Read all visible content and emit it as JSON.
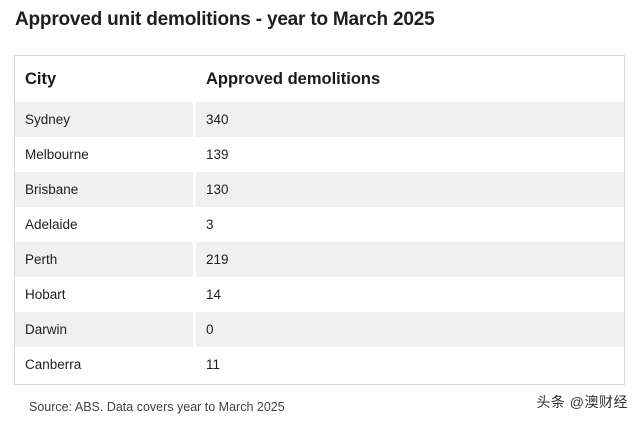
{
  "title": "Approved unit demolitions - year to March 2025",
  "chart_data": {
    "type": "table",
    "columns": [
      "City",
      "Approved demolitions"
    ],
    "rows": [
      {
        "city": "Sydney",
        "value": "340"
      },
      {
        "city": "Melbourne",
        "value": "139"
      },
      {
        "city": "Brisbane",
        "value": "130"
      },
      {
        "city": "Adelaide",
        "value": "3"
      },
      {
        "city": "Perth",
        "value": "219"
      },
      {
        "city": "Hobart",
        "value": "14"
      },
      {
        "city": "Darwin",
        "value": "0"
      },
      {
        "city": "Canberra",
        "value": "11"
      }
    ]
  },
  "source": "Source: ABS. Data covers year to March 2025",
  "watermark": "头条 @澳财经"
}
